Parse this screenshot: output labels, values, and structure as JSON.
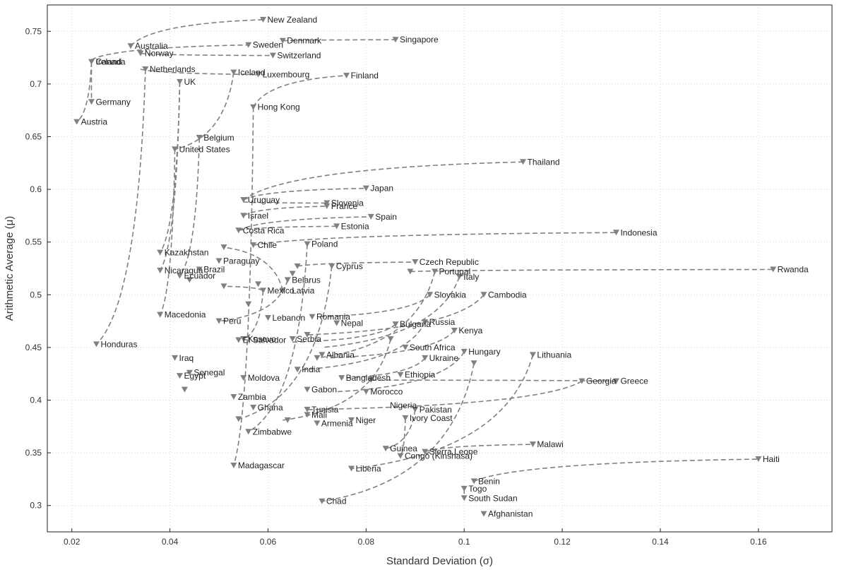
{
  "chart_data": {
    "type": "scatter",
    "title": "",
    "xlabel": "Standard Deviation (σ)",
    "ylabel": "Arithmetic Average (μ)",
    "xlim": [
      0.015,
      0.175
    ],
    "ylim": [
      0.275,
      0.775
    ],
    "x_ticks": [
      "0.02",
      "0.04",
      "0.06",
      "0.08",
      "0.1",
      "0.12",
      "0.14",
      "0.16"
    ],
    "y_ticks": [
      "0.3",
      "0.35",
      "0.4",
      "0.45",
      "0.5",
      "0.55",
      "0.6",
      "0.65",
      "0.7",
      "0.75"
    ],
    "grid": true,
    "legend": "none",
    "color": "#808080",
    "paths": [
      [
        [
          0.032,
          0.736
        ],
        [
          0.059,
          0.761
        ]
      ],
      [
        [
          0.063,
          0.741
        ],
        [
          0.086,
          0.742
        ]
      ],
      [
        [
          0.024,
          0.723
        ],
        [
          0.056,
          0.737
        ]
      ],
      [
        [
          0.024,
          0.721
        ],
        [
          0.021,
          0.664
        ]
      ],
      [
        [
          0.024,
          0.721
        ],
        [
          0.024,
          0.683
        ]
      ],
      [
        [
          0.034,
          0.729
        ],
        [
          0.061,
          0.727
        ]
      ],
      [
        [
          0.034,
          0.714
        ],
        [
          0.058,
          0.709
        ]
      ],
      [
        [
          0.035,
          0.714
        ],
        [
          0.025,
          0.453
        ]
      ],
      [
        [
          0.042,
          0.702
        ],
        [
          0.038,
          0.54
        ]
      ],
      [
        [
          0.042,
          0.702
        ],
        [
          0.038,
          0.523
        ]
      ],
      [
        [
          0.053,
          0.711
        ],
        [
          0.041,
          0.638
        ]
      ],
      [
        [
          0.041,
          0.638
        ],
        [
          0.038,
          0.481
        ]
      ],
      [
        [
          0.046,
          0.649
        ],
        [
          0.042,
          0.518
        ]
      ],
      [
        [
          0.057,
          0.678
        ],
        [
          0.076,
          0.708
        ]
      ],
      [
        [
          0.057,
          0.678
        ],
        [
          0.053,
          0.338
        ]
      ],
      [
        [
          0.055,
          0.59
        ],
        [
          0.112,
          0.626
        ]
      ],
      [
        [
          0.055,
          0.59
        ],
        [
          0.08,
          0.601
        ]
      ],
      [
        [
          0.055,
          0.588
        ],
        [
          0.072,
          0.587
        ]
      ],
      [
        [
          0.055,
          0.575
        ],
        [
          0.072,
          0.584
        ]
      ],
      [
        [
          0.054,
          0.561
        ],
        [
          0.081,
          0.574
        ]
      ],
      [
        [
          0.054,
          0.561
        ],
        [
          0.074,
          0.565
        ]
      ],
      [
        [
          0.057,
          0.547
        ],
        [
          0.131,
          0.559
        ]
      ],
      [
        [
          0.068,
          0.548
        ],
        [
          0.056,
          0.37
        ]
      ],
      [
        [
          0.066,
          0.527
        ],
        [
          0.09,
          0.531
        ]
      ],
      [
        [
          0.089,
          0.522
        ],
        [
          0.163,
          0.524
        ]
      ],
      [
        [
          0.094,
          0.522
        ],
        [
          0.07,
          0.44
        ]
      ],
      [
        [
          0.073,
          0.527
        ],
        [
          0.054,
          0.382
        ]
      ],
      [
        [
          0.064,
          0.514
        ],
        [
          0.05,
          0.475
        ]
      ],
      [
        [
          0.063,
          0.504
        ],
        [
          0.051,
          0.545
        ]
      ],
      [
        [
          0.059,
          0.504
        ],
        [
          0.051,
          0.508
        ]
      ],
      [
        [
          0.059,
          0.504
        ],
        [
          0.055,
          0.458
        ]
      ],
      [
        [
          0.099,
          0.517
        ],
        [
          0.071,
          0.45
        ]
      ],
      [
        [
          0.093,
          0.5
        ],
        [
          0.07,
          0.479
        ]
      ],
      [
        [
          0.104,
          0.5
        ],
        [
          0.068,
          0.462
        ]
      ],
      [
        [
          0.098,
          0.466
        ],
        [
          0.072,
          0.44
        ]
      ],
      [
        [
          0.092,
          0.474
        ],
        [
          0.067,
          0.429
        ]
      ],
      [
        [
          0.086,
          0.472
        ],
        [
          0.065,
          0.455
        ]
      ],
      [
        [
          0.085,
          0.458
        ],
        [
          0.063,
          0.381
        ]
      ],
      [
        [
          0.1,
          0.446
        ],
        [
          0.074,
          0.408
        ]
      ],
      [
        [
          0.092,
          0.44
        ],
        [
          0.075,
          0.421
        ]
      ],
      [
        [
          0.114,
          0.443
        ],
        [
          0.077,
          0.335
        ]
      ],
      [
        [
          0.102,
          0.435
        ],
        [
          0.071,
          0.304
        ]
      ],
      [
        [
          0.131,
          0.418
        ],
        [
          0.081,
          0.419
        ]
      ],
      [
        [
          0.124,
          0.418
        ],
        [
          0.068,
          0.391
        ]
      ],
      [
        [
          0.09,
          0.391
        ],
        [
          0.084,
          0.354
        ]
      ],
      [
        [
          0.088,
          0.383
        ],
        [
          0.087,
          0.347
        ]
      ],
      [
        [
          0.092,
          0.351
        ],
        [
          0.114,
          0.358
        ]
      ],
      [
        [
          0.102,
          0.323
        ],
        [
          0.16,
          0.344
        ]
      ],
      [
        [
          0.1,
          0.316
        ],
        [
          0.1,
          0.307
        ]
      ]
    ],
    "markers": [
      [
        0.059,
        0.761
      ],
      [
        0.032,
        0.736
      ],
      [
        0.063,
        0.741
      ],
      [
        0.086,
        0.742
      ],
      [
        0.024,
        0.721
      ],
      [
        0.034,
        0.729
      ],
      [
        0.056,
        0.737
      ],
      [
        0.061,
        0.727
      ],
      [
        0.035,
        0.714
      ],
      [
        0.053,
        0.711
      ],
      [
        0.058,
        0.709
      ],
      [
        0.076,
        0.708
      ],
      [
        0.042,
        0.702
      ],
      [
        0.024,
        0.683
      ],
      [
        0.021,
        0.664
      ],
      [
        0.057,
        0.678
      ],
      [
        0.046,
        0.649
      ],
      [
        0.041,
        0.638
      ],
      [
        0.112,
        0.626
      ],
      [
        0.08,
        0.601
      ],
      [
        0.055,
        0.59
      ],
      [
        0.072,
        0.587
      ],
      [
        0.055,
        0.575
      ],
      [
        0.072,
        0.584
      ],
      [
        0.081,
        0.574
      ],
      [
        0.074,
        0.565
      ],
      [
        0.054,
        0.561
      ],
      [
        0.131,
        0.559
      ],
      [
        0.057,
        0.547
      ],
      [
        0.068,
        0.548
      ],
      [
        0.038,
        0.54
      ],
      [
        0.051,
        0.545
      ],
      [
        0.073,
        0.527
      ],
      [
        0.09,
        0.531
      ],
      [
        0.066,
        0.527
      ],
      [
        0.094,
        0.522
      ],
      [
        0.089,
        0.522
      ],
      [
        0.163,
        0.524
      ],
      [
        0.05,
        0.532
      ],
      [
        0.038,
        0.523
      ],
      [
        0.042,
        0.518
      ],
      [
        0.044,
        0.514
      ],
      [
        0.046,
        0.524
      ],
      [
        0.064,
        0.514
      ],
      [
        0.099,
        0.517
      ],
      [
        0.063,
        0.504
      ],
      [
        0.059,
        0.504
      ],
      [
        0.051,
        0.508
      ],
      [
        0.093,
        0.5
      ],
      [
        0.104,
        0.5
      ],
      [
        0.056,
        0.491
      ],
      [
        0.038,
        0.481
      ],
      [
        0.069,
        0.479
      ],
      [
        0.06,
        0.478
      ],
      [
        0.05,
        0.475
      ],
      [
        0.086,
        0.472
      ],
      [
        0.092,
        0.474
      ],
      [
        0.074,
        0.473
      ],
      [
        0.098,
        0.466
      ],
      [
        0.068,
        0.462
      ],
      [
        0.065,
        0.458
      ],
      [
        0.055,
        0.458
      ],
      [
        0.054,
        0.457
      ],
      [
        0.085,
        0.458
      ],
      [
        0.025,
        0.453
      ],
      [
        0.088,
        0.45
      ],
      [
        0.1,
        0.446
      ],
      [
        0.114,
        0.443
      ],
      [
        0.071,
        0.443
      ],
      [
        0.092,
        0.44
      ],
      [
        0.041,
        0.44
      ],
      [
        0.102,
        0.435
      ],
      [
        0.07,
        0.44
      ],
      [
        0.066,
        0.429
      ],
      [
        0.044,
        0.426
      ],
      [
        0.042,
        0.423
      ],
      [
        0.075,
        0.421
      ],
      [
        0.055,
        0.421
      ],
      [
        0.087,
        0.424
      ],
      [
        0.081,
        0.419
      ],
      [
        0.124,
        0.418
      ],
      [
        0.131,
        0.418
      ],
      [
        0.043,
        0.41
      ],
      [
        0.068,
        0.41
      ],
      [
        0.053,
        0.403
      ],
      [
        0.08,
        0.408
      ],
      [
        0.068,
        0.391
      ],
      [
        0.057,
        0.393
      ],
      [
        0.09,
        0.391
      ],
      [
        0.064,
        0.381
      ],
      [
        0.054,
        0.382
      ],
      [
        0.068,
        0.386
      ],
      [
        0.077,
        0.381
      ],
      [
        0.07,
        0.378
      ],
      [
        0.088,
        0.383
      ],
      [
        0.056,
        0.37
      ],
      [
        0.114,
        0.358
      ],
      [
        0.084,
        0.354
      ],
      [
        0.092,
        0.351
      ],
      [
        0.087,
        0.347
      ],
      [
        0.16,
        0.344
      ],
      [
        0.053,
        0.338
      ],
      [
        0.077,
        0.335
      ],
      [
        0.102,
        0.323
      ],
      [
        0.1,
        0.316
      ],
      [
        0.1,
        0.307
      ],
      [
        0.071,
        0.304
      ],
      [
        0.104,
        0.292
      ],
      [
        0.065,
        0.52
      ],
      [
        0.058,
        0.51
      ]
    ],
    "labels": [
      {
        "text": "New Zealand",
        "x": 0.059,
        "y": 0.761
      },
      {
        "text": "Australia",
        "x": 0.032,
        "y": 0.736
      },
      {
        "text": "Denmark",
        "x": 0.063,
        "y": 0.741
      },
      {
        "text": "Singapore",
        "x": 0.086,
        "y": 0.742
      },
      {
        "text": "Ireland",
        "x": 0.024,
        "y": 0.721
      },
      {
        "text": "Norway",
        "x": 0.034,
        "y": 0.729
      },
      {
        "text": "Canada",
        "x": 0.024,
        "y": 0.721
      },
      {
        "text": "Sweden",
        "x": 0.056,
        "y": 0.737
      },
      {
        "text": "Switzerland",
        "x": 0.061,
        "y": 0.727
      },
      {
        "text": "Netherlands",
        "x": 0.035,
        "y": 0.714
      },
      {
        "text": "Iceland",
        "x": 0.053,
        "y": 0.711
      },
      {
        "text": "Luxembourg",
        "x": 0.058,
        "y": 0.709
      },
      {
        "text": "Finland",
        "x": 0.076,
        "y": 0.708
      },
      {
        "text": "UK",
        "x": 0.042,
        "y": 0.702
      },
      {
        "text": "Germany",
        "x": 0.024,
        "y": 0.683
      },
      {
        "text": "Austria",
        "x": 0.021,
        "y": 0.664
      },
      {
        "text": "Hong Kong",
        "x": 0.057,
        "y": 0.678
      },
      {
        "text": "Belgium",
        "x": 0.046,
        "y": 0.649
      },
      {
        "text": "United States",
        "x": 0.041,
        "y": 0.638
      },
      {
        "text": "Thailand",
        "x": 0.112,
        "y": 0.626
      },
      {
        "text": "Japan",
        "x": 0.08,
        "y": 0.601
      },
      {
        "text": "Uruguay",
        "x": 0.055,
        "y": 0.59
      },
      {
        "text": "Slovenia",
        "x": 0.072,
        "y": 0.587
      },
      {
        "text": "Israel",
        "x": 0.055,
        "y": 0.575
      },
      {
        "text": "France",
        "x": 0.072,
        "y": 0.584
      },
      {
        "text": "Spain",
        "x": 0.081,
        "y": 0.574
      },
      {
        "text": "Costa Rica",
        "x": 0.054,
        "y": 0.561
      },
      {
        "text": "Estonia",
        "x": 0.074,
        "y": 0.565
      },
      {
        "text": "Indonesia",
        "x": 0.131,
        "y": 0.559
      },
      {
        "text": "Chile",
        "x": 0.057,
        "y": 0.547
      },
      {
        "text": "Poland",
        "x": 0.068,
        "y": 0.548
      },
      {
        "text": "Kazakhstan",
        "x": 0.038,
        "y": 0.54
      },
      {
        "text": "Czech Republic",
        "x": 0.09,
        "y": 0.531
      },
      {
        "text": "Cyprus",
        "x": 0.073,
        "y": 0.527
      },
      {
        "text": "Paraguay",
        "x": 0.05,
        "y": 0.532
      },
      {
        "text": "Portugal",
        "x": 0.094,
        "y": 0.522
      },
      {
        "text": "Rwanda",
        "x": 0.163,
        "y": 0.524
      },
      {
        "text": "Nicaragua",
        "x": 0.038,
        "y": 0.523
      },
      {
        "text": "Brazil",
        "x": 0.046,
        "y": 0.524
      },
      {
        "text": "Ecuador",
        "x": 0.042,
        "y": 0.518
      },
      {
        "text": "Belarus",
        "x": 0.064,
        "y": 0.514
      },
      {
        "text": "Italy",
        "x": 0.099,
        "y": 0.517
      },
      {
        "text": "Mexico",
        "x": 0.059,
        "y": 0.504
      },
      {
        "text": "Slovakia",
        "x": 0.093,
        "y": 0.5
      },
      {
        "text": "Cambodia",
        "x": 0.104,
        "y": 0.5
      },
      {
        "text": "Latvia",
        "x": 0.064,
        "y": 0.504
      },
      {
        "text": "Macedonia",
        "x": 0.038,
        "y": 0.481
      },
      {
        "text": "Lebanon",
        "x": 0.06,
        "y": 0.478
      },
      {
        "text": "Peru",
        "x": 0.05,
        "y": 0.475
      },
      {
        "text": "Romania",
        "x": 0.069,
        "y": 0.479
      },
      {
        "text": "Nepal",
        "x": 0.074,
        "y": 0.473
      },
      {
        "text": "Russia",
        "x": 0.092,
        "y": 0.474
      },
      {
        "text": "Kenya",
        "x": 0.098,
        "y": 0.466
      },
      {
        "text": "Kosovo",
        "x": 0.055,
        "y": 0.458
      },
      {
        "text": "Bulgaria",
        "x": 0.086,
        "y": 0.472
      },
      {
        "text": "Serbia",
        "x": 0.065,
        "y": 0.458
      },
      {
        "text": "Honduras",
        "x": 0.025,
        "y": 0.453
      },
      {
        "text": "South Africa",
        "x": 0.088,
        "y": 0.45
      },
      {
        "text": "El Salvador",
        "x": 0.054,
        "y": 0.457
      },
      {
        "text": "Hungary",
        "x": 0.1,
        "y": 0.446
      },
      {
        "text": "Lithuania",
        "x": 0.114,
        "y": 0.443
      },
      {
        "text": "Albania",
        "x": 0.071,
        "y": 0.443
      },
      {
        "text": "Iraq",
        "x": 0.041,
        "y": 0.44
      },
      {
        "text": "Ukraine",
        "x": 0.092,
        "y": 0.44
      },
      {
        "text": "India",
        "x": 0.066,
        "y": 0.429
      },
      {
        "text": "Senegal",
        "x": 0.044,
        "y": 0.426
      },
      {
        "text": "Moldova",
        "x": 0.055,
        "y": 0.421
      },
      {
        "text": "Bangladesh",
        "x": 0.075,
        "y": 0.421
      },
      {
        "text": "Ethiopia",
        "x": 0.087,
        "y": 0.424
      },
      {
        "text": "Greece",
        "x": 0.131,
        "y": 0.418
      },
      {
        "text": "Egypt",
        "x": 0.042,
        "y": 0.423
      },
      {
        "text": "Georgia",
        "x": 0.124,
        "y": 0.418
      },
      {
        "text": "Gabon",
        "x": 0.068,
        "y": 0.41
      },
      {
        "text": "Zambia",
        "x": 0.053,
        "y": 0.403
      },
      {
        "text": "Morocco",
        "x": 0.08,
        "y": 0.408
      },
      {
        "text": "Tunisia",
        "x": 0.068,
        "y": 0.391
      },
      {
        "text": "Pakistan",
        "x": 0.09,
        "y": 0.391
      },
      {
        "text": "Ghana",
        "x": 0.057,
        "y": 0.393
      },
      {
        "text": "Nigeria",
        "x": 0.084,
        "y": 0.395
      },
      {
        "text": "Mali",
        "x": 0.068,
        "y": 0.386
      },
      {
        "text": "Ivory Coast",
        "x": 0.088,
        "y": 0.383
      },
      {
        "text": "Niger",
        "x": 0.077,
        "y": 0.381
      },
      {
        "text": "Armenia",
        "x": 0.07,
        "y": 0.378
      },
      {
        "text": "Zimbabwe",
        "x": 0.056,
        "y": 0.37
      },
      {
        "text": "Sierra Leone",
        "x": 0.092,
        "y": 0.351
      },
      {
        "text": "Malawi",
        "x": 0.114,
        "y": 0.358
      },
      {
        "text": "Guinea",
        "x": 0.084,
        "y": 0.354
      },
      {
        "text": "Congo (Kinshasa)",
        "x": 0.087,
        "y": 0.347
      },
      {
        "text": "Madagascar",
        "x": 0.053,
        "y": 0.338
      },
      {
        "text": "Haiti",
        "x": 0.16,
        "y": 0.344
      },
      {
        "text": "Liberia",
        "x": 0.077,
        "y": 0.335
      },
      {
        "text": "Benin",
        "x": 0.102,
        "y": 0.323
      },
      {
        "text": "Togo",
        "x": 0.1,
        "y": 0.316
      },
      {
        "text": "South Sudan",
        "x": 0.1,
        "y": 0.307
      },
      {
        "text": "Chad",
        "x": 0.071,
        "y": 0.304
      },
      {
        "text": "Afghanistan",
        "x": 0.104,
        "y": 0.292
      }
    ]
  }
}
